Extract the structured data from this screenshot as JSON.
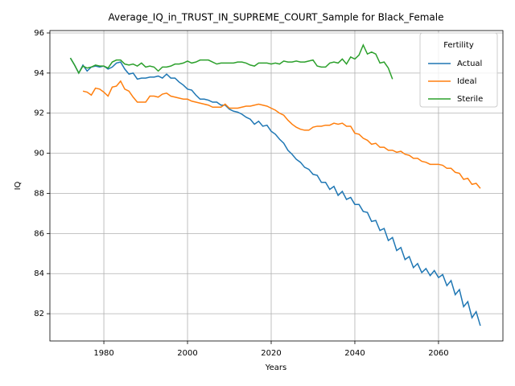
{
  "chart_data": {
    "type": "line",
    "title": "Average_IQ_in_TRUST_IN_SUPREME_COURT_Sample for Black_Female",
    "x_label": "Years",
    "y_label": "IQ",
    "x": [
      1972,
      1973,
      1974,
      1975,
      1976,
      1977,
      1978,
      1979,
      1980,
      1981,
      1982,
      1983,
      1984,
      1985,
      1986,
      1987,
      1988,
      1989,
      1990,
      1991,
      1992,
      1993,
      1994,
      1995,
      1996,
      1997,
      1998,
      1999,
      2000,
      2001,
      2002,
      2003,
      2004,
      2005,
      2006,
      2007,
      2008,
      2009,
      2010,
      2011,
      2012,
      2013,
      2014,
      2015,
      2016,
      2017,
      2018,
      2019,
      2020,
      2021,
      2022,
      2023,
      2024,
      2025,
      2026,
      2027,
      2028,
      2029,
      2030,
      2031,
      2032,
      2033,
      2034,
      2035,
      2036,
      2037,
      2038,
      2039,
      2040,
      2041,
      2042,
      2043,
      2044,
      2045,
      2046,
      2047,
      2048,
      2049,
      2050,
      2051,
      2052,
      2053,
      2054,
      2055,
      2056,
      2057,
      2058,
      2059,
      2060,
      2061,
      2062,
      2063,
      2064,
      2065,
      2066,
      2067,
      2068,
      2069,
      2070
    ],
    "series": [
      {
        "name": "Actual",
        "color": "#1f77b4",
        "values": [
          94.75,
          94.4,
          94.0,
          94.4,
          94.1,
          94.3,
          94.35,
          94.3,
          94.35,
          94.2,
          94.3,
          94.5,
          94.55,
          94.2,
          93.95,
          94.0,
          93.7,
          93.75,
          93.75,
          93.8,
          93.8,
          93.85,
          93.75,
          93.95,
          93.75,
          93.75,
          93.55,
          93.4,
          93.2,
          93.15,
          92.9,
          92.7,
          92.7,
          92.65,
          92.55,
          92.55,
          92.4,
          92.4,
          92.2,
          92.1,
          92.05,
          91.95,
          91.8,
          91.7,
          91.45,
          91.6,
          91.35,
          91.4,
          91.1,
          90.95,
          90.7,
          90.5,
          90.15,
          89.95,
          89.7,
          89.55,
          89.3,
          89.2,
          88.95,
          88.9,
          88.55,
          88.55,
          88.2,
          88.35,
          87.9,
          88.1,
          87.7,
          87.8,
          87.45,
          87.45,
          87.1,
          87.05,
          86.6,
          86.65,
          86.15,
          86.25,
          85.65,
          85.8,
          85.15,
          85.3,
          84.7,
          84.85,
          84.3,
          84.5,
          84.05,
          84.25,
          83.9,
          84.15,
          83.8,
          83.95,
          83.4,
          83.65,
          82.95,
          83.2,
          82.35,
          82.6,
          81.8,
          82.1,
          81.4
        ]
      },
      {
        "name": "Ideal",
        "color": "#ff7f0e",
        "values": [
          null,
          null,
          null,
          93.1,
          93.05,
          92.9,
          93.25,
          93.2,
          93.05,
          92.85,
          93.3,
          93.35,
          93.6,
          93.2,
          93.1,
          92.8,
          92.55,
          92.55,
          92.55,
          92.85,
          92.85,
          92.8,
          92.95,
          93.0,
          92.85,
          92.8,
          92.75,
          92.7,
          92.7,
          92.6,
          92.55,
          92.5,
          92.45,
          92.4,
          92.3,
          92.3,
          92.3,
          92.45,
          92.25,
          92.25,
          92.25,
          92.3,
          92.35,
          92.35,
          92.4,
          92.45,
          92.4,
          92.35,
          92.25,
          92.15,
          92.0,
          91.9,
          91.65,
          91.45,
          91.3,
          91.2,
          91.15,
          91.15,
          91.3,
          91.35,
          91.35,
          91.4,
          91.4,
          91.5,
          91.45,
          91.5,
          91.35,
          91.35,
          91.0,
          90.95,
          90.75,
          90.65,
          90.45,
          90.5,
          90.3,
          90.3,
          90.15,
          90.15,
          90.05,
          90.1,
          89.95,
          89.9,
          89.75,
          89.75,
          89.6,
          89.55,
          89.45,
          89.45,
          89.45,
          89.4,
          89.25,
          89.25,
          89.05,
          89.0,
          88.7,
          88.75,
          88.45,
          88.5,
          88.25
        ]
      },
      {
        "name": "Sterile",
        "color": "#2ca02c",
        "values": [
          94.75,
          94.4,
          94.0,
          94.35,
          94.25,
          94.3,
          94.4,
          94.35,
          94.35,
          94.25,
          94.55,
          94.65,
          94.65,
          94.45,
          94.4,
          94.45,
          94.35,
          94.5,
          94.3,
          94.35,
          94.3,
          94.1,
          94.3,
          94.3,
          94.35,
          94.45,
          94.45,
          94.5,
          94.6,
          94.5,
          94.55,
          94.65,
          94.65,
          94.65,
          94.55,
          94.45,
          94.5,
          94.5,
          94.5,
          94.5,
          94.55,
          94.55,
          94.5,
          94.4,
          94.35,
          94.5,
          94.5,
          94.5,
          94.45,
          94.5,
          94.45,
          94.6,
          94.55,
          94.55,
          94.6,
          94.55,
          94.55,
          94.6,
          94.65,
          94.35,
          94.3,
          94.3,
          94.5,
          94.55,
          94.5,
          94.7,
          94.45,
          94.8,
          94.7,
          94.9,
          95.4,
          94.95,
          95.05,
          94.95,
          94.5,
          94.55,
          94.25,
          93.7,
          null,
          null,
          null,
          null,
          null,
          null,
          null,
          null,
          null,
          null,
          null,
          null,
          null,
          null,
          null,
          null,
          null,
          null,
          null,
          null,
          null
        ]
      }
    ],
    "xlim": [
      1967.1,
      2075.4
    ],
    "ylim": [
      80.64,
      96.12
    ],
    "xticks": [
      1980,
      2000,
      2020,
      2040,
      2060
    ],
    "yticks": [
      82,
      84,
      86,
      88,
      90,
      92,
      94,
      96
    ],
    "grid": true,
    "legend_title": "Fertility",
    "legend_position": "upper right"
  }
}
